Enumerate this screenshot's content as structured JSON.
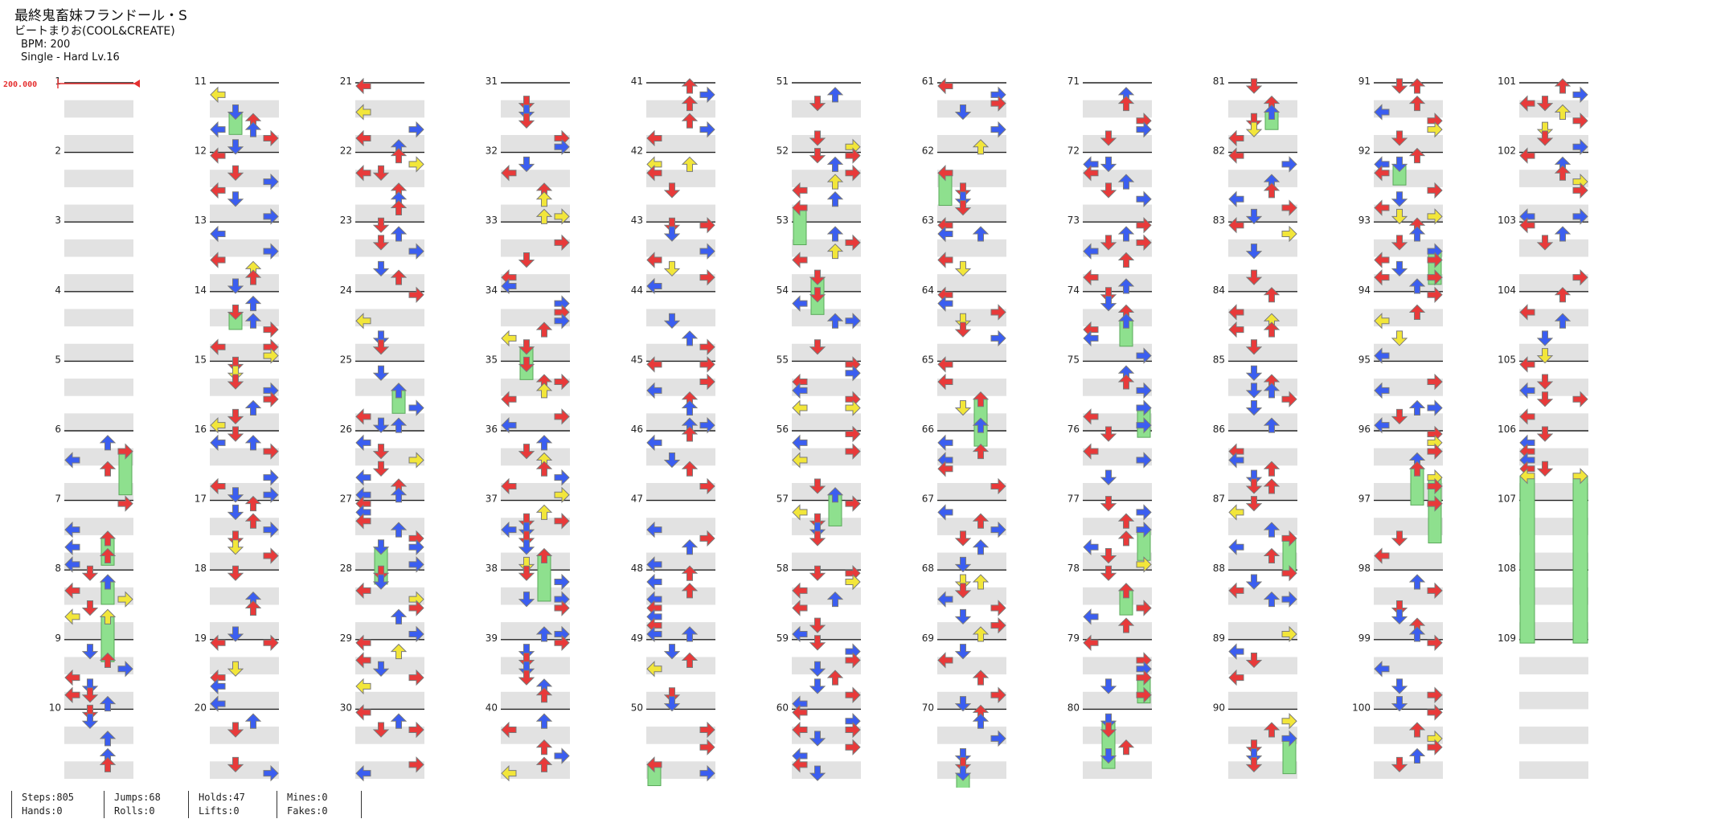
{
  "song": {
    "title": "最終鬼畜妹フランドール・S",
    "artist": "ビートまりお(COOL&CREATE)",
    "bpm_label": "BPM: 200",
    "difficulty_label": "Single - Hard  Lv.16"
  },
  "bpm_marker": {
    "label": "200.000",
    "color": "#e53030"
  },
  "chart": {
    "total_measures": 109,
    "measures_per_column": 10,
    "lanes": [
      "left",
      "down",
      "up",
      "right"
    ],
    "colors": {
      "quarter": "#e83a3a",
      "eighth": "#3b5ef0",
      "sixteenth": "#f2e63a",
      "hold": "#8ee08e",
      "lane_stripe": "#e2e2e2",
      "beat_line": "#222222"
    },
    "arrow_icons": [
      "left-arrow-icon",
      "down-arrow-icon",
      "up-arrow-icon",
      "right-arrow-icon"
    ]
  },
  "stats": {
    "steps": "Steps:805",
    "hands": "Hands:0",
    "jumps": "Jumps:68",
    "rolls": "Rolls:0",
    "holds": "Holds:47",
    "lifts": "Lifts:0",
    "mines": "Mines:0",
    "fakes": "Fakes:0"
  }
}
